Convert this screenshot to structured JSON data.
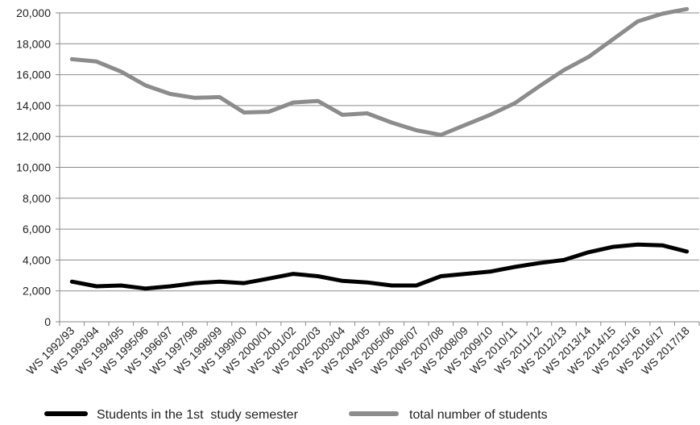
{
  "chart_data": {
    "type": "line",
    "title": "",
    "xlabel": "",
    "ylabel": "",
    "ylim": [
      0,
      20000
    ],
    "yticks": [
      "0",
      "2,000",
      "4,000",
      "6,000",
      "8,000",
      "10,000",
      "12,000",
      "14,000",
      "16,000",
      "18,000",
      "20,000"
    ],
    "grid": "horizontal",
    "legend": "bottom",
    "categories": [
      "WS 1992/93",
      "WS 1993/94",
      "WS 1994/95",
      "WS 1995/96",
      "WS 1996/97",
      "WS 1997/98",
      "WS 1998/99",
      "WS 1999/00",
      "WS 2000/01",
      "WS 2001/02",
      "WS 2002/03",
      "WS 2003/04",
      "WS 2004/05",
      "WS 2005/06",
      "WS 2006/07",
      "WS 2007/08",
      "WS 2008/09",
      "WS 2009/10",
      "WS 2010/11",
      "WS 2011/12",
      "WS 2012/13",
      "WS 2013/14",
      "WS 2014/15",
      "WS 2015/16",
      "WS 2016/17",
      "WS 2017/18"
    ],
    "series": [
      {
        "name": "Students in the 1st  study semester",
        "color": "#000000",
        "values": [
          2600,
          2300,
          2350,
          2150,
          2300,
          2500,
          2600,
          2500,
          2800,
          3100,
          2950,
          2650,
          2550,
          2350,
          2350,
          2950,
          3100,
          3250,
          3550,
          3800,
          4000,
          4500,
          4850,
          5000,
          4950,
          4550
        ]
      },
      {
        "name": "total number of students",
        "color": "#8c8c8c",
        "values": [
          17000,
          16850,
          16200,
          15300,
          14750,
          14500,
          14550,
          13550,
          13600,
          14200,
          14300,
          13400,
          13500,
          12900,
          12400,
          12100,
          12750,
          13400,
          14150,
          15250,
          16300,
          17150,
          18300,
          19450,
          19950,
          20250
        ]
      }
    ]
  }
}
